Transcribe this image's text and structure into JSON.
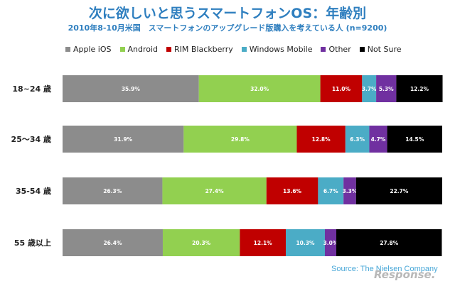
{
  "title": "次に欲しいと思うスマートフォンOS：年齢別",
  "subtitle": "2010年8-10月米国　スマートフォンのアップグレード版購入を考えている人 (n=9200)",
  "source": "Source: The Nielsen Company",
  "watermark": "Response.",
  "chart_data": {
    "type": "bar",
    "orientation": "horizontal",
    "stacked": true,
    "percent_stacked": true,
    "xlim": [
      0,
      100
    ],
    "grid": false,
    "legend_position": "top",
    "categories": [
      "18~24 歳",
      "25～34 歳",
      "35-54 歳",
      "55 歳以上"
    ],
    "series": [
      {
        "name": "Apple iOS",
        "color": "#8c8c8c",
        "values": [
          35.9,
          31.9,
          26.3,
          26.4
        ],
        "labels": [
          "35.9%",
          "31.9%",
          "26.3%",
          "26.4%"
        ]
      },
      {
        "name": "Android",
        "color": "#92d050",
        "values": [
          32.0,
          29.8,
          27.4,
          20.3
        ],
        "labels": [
          "32.0%",
          "29.8%",
          "27.4%",
          "20.3%"
        ]
      },
      {
        "name": "RIM Blackberry",
        "color": "#c00000",
        "values": [
          11.0,
          12.8,
          13.6,
          12.1
        ],
        "labels": [
          "11.0%",
          "12.8%",
          "13.6%",
          "12.1%"
        ]
      },
      {
        "name": "Windows Mobile",
        "color": "#4bacc6",
        "values": [
          3.7,
          6.3,
          6.7,
          10.3
        ],
        "labels": [
          "3.7%",
          "6.3%",
          "6.7%",
          "10.3%"
        ]
      },
      {
        "name": "Other",
        "color": "#7030a0",
        "values": [
          5.3,
          4.7,
          3.3,
          3.0
        ],
        "labels": [
          "5.3%",
          "4.7%",
          "3.3%",
          "3.0%"
        ]
      },
      {
        "name": "Not Sure",
        "color": "#000000",
        "values": [
          12.2,
          14.5,
          22.7,
          27.8
        ],
        "labels": [
          "12.2%",
          "14.5%",
          "22.7%",
          "27.8%"
        ]
      }
    ]
  }
}
